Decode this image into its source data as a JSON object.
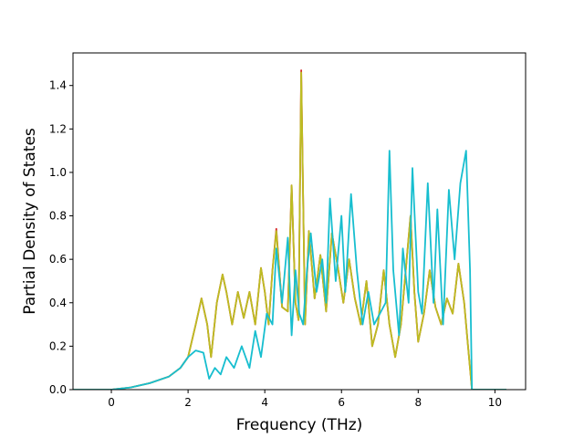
{
  "chart_data": {
    "type": "line",
    "title": "",
    "xlabel": "Frequency (THz)",
    "ylabel": "Partial Density of States",
    "xlim": [
      -1.0,
      10.8
    ],
    "ylim": [
      0.0,
      1.55
    ],
    "x_ticks": [
      0,
      2,
      4,
      6,
      8,
      10
    ],
    "x_tick_labels": [
      "0",
      "2",
      "4",
      "6",
      "8",
      "10"
    ],
    "y_ticks": [
      0.0,
      0.2,
      0.4,
      0.6,
      0.8,
      1.0,
      1.2,
      1.4
    ],
    "y_tick_labels": [
      "0.0",
      "0.2",
      "0.4",
      "0.6",
      "0.8",
      "1.0",
      "1.2",
      "1.4"
    ],
    "grid": false,
    "legend": "none",
    "series": [
      {
        "color": "#d62728",
        "x": [
          -1.0,
          0.0,
          0.5,
          1.0,
          1.5,
          1.8,
          2.0,
          2.2,
          2.35,
          2.5,
          2.6,
          2.75,
          2.9,
          3.0,
          3.15,
          3.3,
          3.45,
          3.6,
          3.75,
          3.9,
          4.0,
          4.1,
          4.2,
          4.3,
          4.45,
          4.6,
          4.7,
          4.8,
          4.88,
          4.95,
          5.05,
          5.15,
          5.3,
          5.45,
          5.6,
          5.75,
          5.9,
          6.05,
          6.2,
          6.35,
          6.5,
          6.65,
          6.8,
          6.95,
          7.1,
          7.25,
          7.4,
          7.55,
          7.7,
          7.8,
          7.9,
          8.0,
          8.15,
          8.3,
          8.45,
          8.6,
          8.75,
          8.9,
          9.05,
          9.2,
          9.3,
          9.4,
          9.6,
          10.3
        ],
        "y": [
          0.0,
          0.0,
          0.01,
          0.03,
          0.06,
          0.1,
          0.15,
          0.3,
          0.42,
          0.3,
          0.15,
          0.4,
          0.53,
          0.45,
          0.3,
          0.45,
          0.33,
          0.45,
          0.3,
          0.56,
          0.45,
          0.3,
          0.55,
          0.74,
          0.38,
          0.36,
          0.94,
          0.4,
          0.32,
          1.47,
          0.3,
          0.73,
          0.42,
          0.62,
          0.36,
          0.72,
          0.57,
          0.4,
          0.6,
          0.42,
          0.3,
          0.5,
          0.2,
          0.3,
          0.55,
          0.3,
          0.15,
          0.3,
          0.6,
          0.8,
          0.45,
          0.22,
          0.35,
          0.55,
          0.38,
          0.3,
          0.42,
          0.35,
          0.58,
          0.4,
          0.2,
          0.0,
          0.0,
          0.0
        ]
      },
      {
        "color": "#bcbd22",
        "x": [
          -1.0,
          0.0,
          0.5,
          1.0,
          1.5,
          1.8,
          2.0,
          2.2,
          2.35,
          2.5,
          2.6,
          2.75,
          2.9,
          3.0,
          3.15,
          3.3,
          3.45,
          3.6,
          3.75,
          3.9,
          4.0,
          4.1,
          4.2,
          4.3,
          4.45,
          4.6,
          4.7,
          4.8,
          4.88,
          4.95,
          5.05,
          5.15,
          5.3,
          5.45,
          5.6,
          5.75,
          5.9,
          6.05,
          6.2,
          6.35,
          6.5,
          6.65,
          6.8,
          6.95,
          7.1,
          7.25,
          7.4,
          7.55,
          7.7,
          7.8,
          7.9,
          8.0,
          8.15,
          8.3,
          8.45,
          8.6,
          8.75,
          8.9,
          9.05,
          9.2,
          9.3,
          9.4,
          9.6,
          10.3
        ],
        "y": [
          0.0,
          0.0,
          0.01,
          0.03,
          0.06,
          0.1,
          0.15,
          0.3,
          0.42,
          0.3,
          0.15,
          0.4,
          0.53,
          0.45,
          0.3,
          0.45,
          0.33,
          0.45,
          0.3,
          0.56,
          0.45,
          0.3,
          0.55,
          0.73,
          0.38,
          0.36,
          0.94,
          0.4,
          0.32,
          1.46,
          0.3,
          0.73,
          0.42,
          0.62,
          0.36,
          0.72,
          0.57,
          0.4,
          0.6,
          0.42,
          0.3,
          0.5,
          0.2,
          0.3,
          0.55,
          0.3,
          0.15,
          0.3,
          0.6,
          0.8,
          0.45,
          0.22,
          0.35,
          0.55,
          0.38,
          0.3,
          0.42,
          0.35,
          0.58,
          0.4,
          0.2,
          0.0,
          0.0,
          0.0
        ]
      },
      {
        "color": "#17becf",
        "x": [
          -1.0,
          0.0,
          0.5,
          1.0,
          1.5,
          1.8,
          2.0,
          2.2,
          2.4,
          2.55,
          2.7,
          2.85,
          3.0,
          3.2,
          3.4,
          3.6,
          3.75,
          3.9,
          4.05,
          4.2,
          4.3,
          4.45,
          4.6,
          4.7,
          4.8,
          4.9,
          5.0,
          5.1,
          5.2,
          5.35,
          5.5,
          5.6,
          5.7,
          5.85,
          6.0,
          6.1,
          6.25,
          6.4,
          6.55,
          6.7,
          6.85,
          7.0,
          7.15,
          7.25,
          7.35,
          7.5,
          7.6,
          7.75,
          7.85,
          8.0,
          8.1,
          8.25,
          8.4,
          8.5,
          8.65,
          8.8,
          8.95,
          9.1,
          9.25,
          9.35,
          9.4,
          9.6,
          10.3
        ],
        "y": [
          0.0,
          0.0,
          0.01,
          0.03,
          0.06,
          0.1,
          0.15,
          0.18,
          0.17,
          0.05,
          0.1,
          0.07,
          0.15,
          0.1,
          0.2,
          0.1,
          0.27,
          0.15,
          0.35,
          0.3,
          0.65,
          0.4,
          0.7,
          0.25,
          0.55,
          0.35,
          0.3,
          0.55,
          0.72,
          0.45,
          0.6,
          0.4,
          0.88,
          0.5,
          0.8,
          0.45,
          0.9,
          0.55,
          0.3,
          0.45,
          0.3,
          0.35,
          0.4,
          1.1,
          0.55,
          0.25,
          0.65,
          0.4,
          1.02,
          0.45,
          0.35,
          0.95,
          0.4,
          0.83,
          0.3,
          0.92,
          0.6,
          0.95,
          1.1,
          0.55,
          0.0,
          0.0,
          0.0
        ]
      }
    ]
  }
}
